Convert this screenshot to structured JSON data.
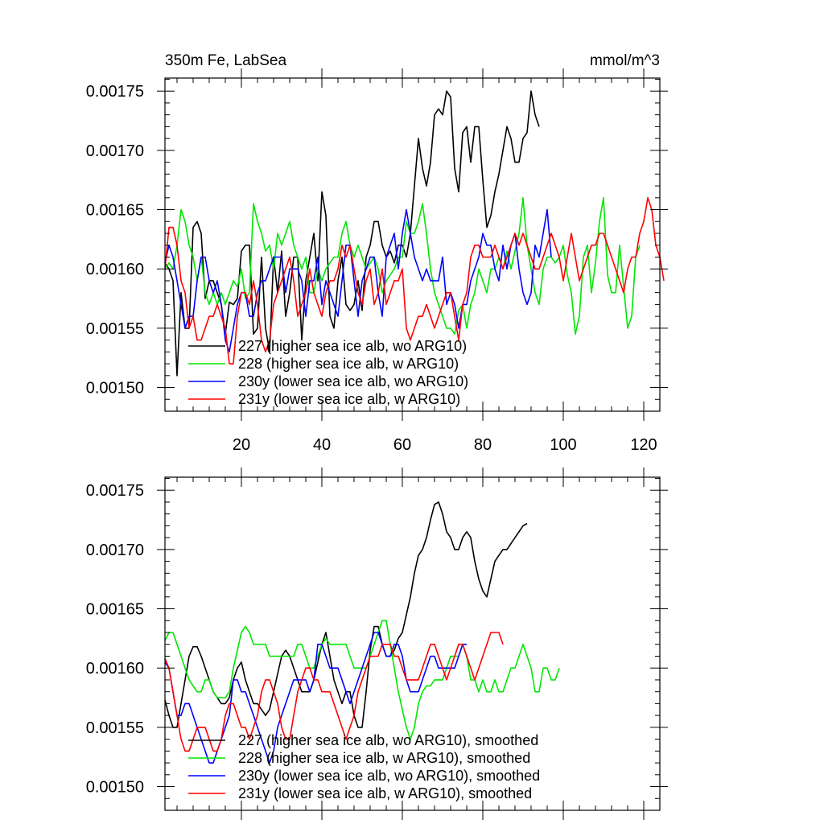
{
  "chart_data": [
    {
      "type": "line",
      "title": "350m Fe, LabSea",
      "units": "mmol/m^3",
      "xlim": [
        1,
        124
      ],
      "ylim": [
        0.00148,
        0.001761
      ],
      "xticks": [
        "20",
        "40",
        "60",
        "80",
        "100",
        "120"
      ],
      "yticks": [
        "0.00150",
        "0.00155",
        "0.00160",
        "0.00165",
        "0.00170",
        "0.00175"
      ],
      "colors": [
        "#000000",
        "#00e600",
        "#0000ff",
        "#ff0000"
      ],
      "series": [
        {
          "name": "227 (higher sea ice alb, wo ARG10)",
          "values": [
            0.001605,
            0.0016,
            0.00159,
            0.00151,
            0.00158,
            0.00155,
            0.00155,
            0.001635,
            0.00164,
            0.00163,
            0.001575,
            0.00159,
            0.00159,
            0.00158,
            0.00157,
            0.001545,
            0.001572,
            0.00157,
            0.001575,
            0.001615,
            0.00162,
            0.00162,
            0.001545,
            0.00155,
            0.00161,
            0.00155,
            0.00153,
            0.00161,
            0.00158,
            0.001615,
            0.00156,
            0.00158,
            0.00161,
            0.00161,
            0.00154,
            0.00159,
            0.00161,
            0.00163,
            0.00159,
            0.001665,
            0.001645,
            0.00156,
            0.00155,
            0.00159,
            0.00161,
            0.00157,
            0.001565,
            0.00157,
            0.00159,
            0.001565,
            0.00161,
            0.00162,
            0.00164,
            0.00164,
            0.00162,
            0.00161,
            0.001615,
            0.001605,
            0.00162,
            0.00162,
            0.00161,
            0.00163,
            0.00167,
            0.00171,
            0.001685,
            0.00167,
            0.00169,
            0.00173,
            0.001735,
            0.00173,
            0.00175,
            0.001745,
            0.001685,
            0.001665,
            0.001715,
            0.00172,
            0.00169,
            0.00172,
            0.00172,
            0.001675,
            0.001635,
            0.001645,
            0.001665,
            0.00168,
            0.0017,
            0.00172,
            0.00171,
            0.00169,
            0.00169,
            0.00171,
            0.001715,
            0.00175,
            0.00173,
            0.00172
          ]
        },
        {
          "name": "228 (higher sea ice alb, w ARG10)",
          "values": [
            0.0016,
            0.001605,
            0.0016,
            0.00162,
            0.00165,
            0.00164,
            0.00162,
            0.00161,
            0.00159,
            0.00161,
            0.00158,
            0.00157,
            0.00158,
            0.00157,
            0.00158,
            0.00157,
            0.00158,
            0.00159,
            0.001585,
            0.0016,
            0.001575,
            0.00158,
            0.001655,
            0.00164,
            0.00163,
            0.001615,
            0.00162,
            0.0016,
            0.00163,
            0.00162,
            0.00163,
            0.00164,
            0.00162,
            0.00161,
            0.0016,
            0.00161,
            0.00158,
            0.00158,
            0.0016,
            0.00159,
            0.0016,
            0.001605,
            0.00161,
            0.00161,
            0.00163,
            0.00164,
            0.00162,
            0.00161,
            0.00162,
            0.00161,
            0.0016,
            0.001605,
            0.00161,
            0.0016,
            0.00158,
            0.00159,
            0.001595,
            0.0016,
            0.00161,
            0.00161,
            0.00164,
            0.00163,
            0.00163,
            0.00164,
            0.001655,
            0.00163,
            0.0016,
            0.00158,
            0.00157,
            0.00156,
            0.00155,
            0.00155,
            0.001545,
            0.001565,
            0.00157,
            0.00155,
            0.00157,
            0.00158,
            0.0016,
            0.00159,
            0.00158,
            0.0016,
            0.0016,
            0.00161,
            0.0016,
            0.001615,
            0.0016,
            0.001615,
            0.00163,
            0.00166,
            0.00162,
            0.0016,
            0.00158,
            0.00157,
            0.0016,
            0.00161,
            0.00161,
            0.001605,
            0.00161,
            0.00162,
            0.001595,
            0.00158,
            0.001545,
            0.00156,
            0.00161,
            0.00162,
            0.00158,
            0.001605,
            0.00164,
            0.00166,
            0.001595,
            0.00158,
            0.00158,
            0.00162,
            0.001585,
            0.00155,
            0.00156,
            0.00161,
            0.00162
          ]
        },
        {
          "name": "230y (lower sea ice alb, wo ARG10)",
          "values": [
            0.001605,
            0.00162,
            0.00161,
            0.00159,
            0.00157,
            0.00155,
            0.00156,
            0.00156,
            0.00159,
            0.00161,
            0.00161,
            0.00159,
            0.00158,
            0.00159,
            0.00157,
            0.00154,
            0.00153,
            0.00155,
            0.00157,
            0.00158,
            0.00158,
            0.00156,
            0.00156,
            0.00158,
            0.00159,
            0.00159,
            0.0016,
            0.00161,
            0.00161,
            0.00161,
            0.00158,
            0.0016,
            0.0016,
            0.0016,
            0.00159,
            0.00156,
            0.00159,
            0.00159,
            0.00161,
            0.00157,
            0.00159,
            0.00158,
            0.00157,
            0.00156,
            0.00159,
            0.00162,
            0.00162,
            0.00159,
            0.00156,
            0.00159,
            0.0016,
            0.00161,
            0.00161,
            0.00158,
            0.00156,
            0.00161,
            0.00162,
            0.00163,
            0.0016,
            0.00163,
            0.00165,
            0.00163,
            0.00161,
            0.0016,
            0.00159,
            0.0016,
            0.00159,
            0.00159,
            0.00159,
            0.00161,
            0.00157,
            0.00158,
            0.00157,
            0.00155,
            0.00157,
            0.00157,
            0.00159,
            0.0016,
            0.00161,
            0.00163,
            0.00162,
            0.00162,
            0.0016,
            0.00159,
            0.00162,
            0.0016,
            0.00162,
            0.00163,
            0.0016,
            0.00158,
            0.00157,
            0.00158,
            0.00162,
            0.00161,
            0.00163,
            0.00165,
            0.00161
          ]
        },
        {
          "name": "231y (lower sea ice alb, w ARG10)",
          "values": [
            0.0016,
            0.001635,
            0.001635,
            0.00162,
            0.00159,
            0.00158,
            0.00155,
            0.00156,
            0.00154,
            0.00154,
            0.00155,
            0.00156,
            0.00156,
            0.00157,
            0.00156,
            0.00155,
            0.00152,
            0.00152,
            0.00156,
            0.00158,
            0.00158,
            0.00157,
            0.00159,
            0.00157,
            0.00154,
            0.00153,
            0.00154,
            0.00157,
            0.00158,
            0.00159,
            0.0016,
            0.00161,
            0.00159,
            0.00156,
            0.00157,
            0.00158,
            0.0016,
            0.00158,
            0.00157,
            0.00156,
            0.00158,
            0.00159,
            0.00159,
            0.0016,
            0.00162,
            0.00161,
            0.00162,
            0.0016,
            0.00158,
            0.00157,
            0.00159,
            0.0016,
            0.00157,
            0.00158,
            0.0016,
            0.00157,
            0.00158,
            0.00159,
            0.00159,
            0.0016,
            0.00155,
            0.00154,
            0.00155,
            0.00156,
            0.00156,
            0.00157,
            0.00156,
            0.00155,
            0.00156,
            0.00157,
            0.00158,
            0.00158,
            0.00156,
            0.00154,
            0.00157,
            0.00158,
            0.00161,
            0.00162,
            0.00162,
            0.00161,
            0.00161,
            0.00161,
            0.00162,
            0.00161,
            0.0016,
            0.00161,
            0.00162,
            0.00163,
            0.00162,
            0.00163,
            0.00162,
            0.00161,
            0.0016,
            0.0016,
            0.00161,
            0.00162,
            0.00163,
            0.00162,
            0.00161,
            0.00159,
            0.00161,
            0.00163,
            0.00161,
            0.00159,
            0.0016,
            0.00161,
            0.00162,
            0.00162,
            0.00163,
            0.00163,
            0.00162,
            0.00161,
            0.0016,
            0.00159,
            0.00158,
            0.0016,
            0.00161,
            0.00161,
            0.00163,
            0.00164,
            0.00166,
            0.00165,
            0.00162,
            0.00161,
            0.00159
          ]
        }
      ]
    },
    {
      "type": "line",
      "title": "",
      "xlim": [
        1,
        124
      ],
      "ylim": [
        0.00148,
        0.001761
      ],
      "yticks": [
        "0.00150",
        "0.00155",
        "0.00160",
        "0.00165",
        "0.00170",
        "0.00175"
      ],
      "colors": [
        "#000000",
        "#00e600",
        "#0000ff",
        "#ff0000"
      ],
      "series": [
        {
          "name": "227 (higher sea ice alb, wo ARG10), smoothed",
          "values": [
            0.001573,
            0.00156,
            0.00155,
            0.00155,
            0.00157,
            0.00159,
            0.00161,
            0.001618,
            0.001618,
            0.00161,
            0.0016,
            0.00159,
            0.00158,
            0.001575,
            0.00157,
            0.00157,
            0.001575,
            0.00159,
            0.0016,
            0.001605,
            0.00159,
            0.00158,
            0.00157,
            0.00157,
            0.001565,
            0.00156,
            0.001565,
            0.00158,
            0.001595,
            0.00161,
            0.001615,
            0.00161,
            0.0016,
            0.00159,
            0.00158,
            0.00158,
            0.00158,
            0.00159,
            0.001605,
            0.00162,
            0.00163,
            0.00161,
            0.00159,
            0.00158,
            0.00157,
            0.00158,
            0.00158,
            0.00156,
            0.00155,
            0.00155,
            0.00158,
            0.001615,
            0.001635,
            0.001635,
            0.00162,
            0.00161,
            0.00161,
            0.001615,
            0.001625,
            0.00163,
            0.001645,
            0.00166,
            0.00168,
            0.001695,
            0.0017,
            0.00171,
            0.001725,
            0.001738,
            0.00174,
            0.00173,
            0.001715,
            0.00171,
            0.0017,
            0.0017,
            0.00171,
            0.001715,
            0.00171,
            0.00169,
            0.001675,
            0.001665,
            0.00166,
            0.001675,
            0.00169,
            0.001695,
            0.0017,
            0.0017,
            0.001705,
            0.00171,
            0.001715,
            0.00172,
            0.001722
          ]
        },
        {
          "name": "228 (higher sea ice alb, w ARG10), smoothed",
          "values": [
            0.001623,
            0.00163,
            0.00163,
            0.00162,
            0.00161,
            0.0016,
            0.00159,
            0.001585,
            0.00158,
            0.00158,
            0.00159,
            0.00159,
            0.00158,
            0.001575,
            0.001575,
            0.001575,
            0.00158,
            0.0016,
            0.001615,
            0.00163,
            0.001635,
            0.00163,
            0.00162,
            0.00162,
            0.00162,
            0.00162,
            0.00161,
            0.00161,
            0.00161,
            0.00161,
            0.00161,
            0.00161,
            0.00161,
            0.00162,
            0.00162,
            0.00161,
            0.0016,
            0.0016,
            0.00161,
            0.00162,
            0.001625,
            0.00162,
            0.00162,
            0.00162,
            0.00162,
            0.00162,
            0.00161,
            0.0016,
            0.0016,
            0.0016,
            0.0016,
            0.00161,
            0.00162,
            0.00163,
            0.00164,
            0.00164,
            0.00162,
            0.0016,
            0.00158,
            0.001565,
            0.00155,
            0.00154,
            0.00155,
            0.00157,
            0.00158,
            0.001585,
            0.001585,
            0.00159,
            0.00159,
            0.00159,
            0.0016,
            0.00161,
            0.00161,
            0.00161,
            0.00162,
            0.00161,
            0.00159,
            0.00159,
            0.00158,
            0.00159,
            0.00158,
            0.00158,
            0.00159,
            0.00158,
            0.00158,
            0.00159,
            0.0016,
            0.0016,
            0.00161,
            0.00162,
            0.00161,
            0.0016,
            0.00158,
            0.00158,
            0.0016,
            0.0016,
            0.00159,
            0.00159,
            0.0016
          ]
        },
        {
          "name": "230y (lower sea ice alb, wo ARG10), smoothed",
          "values": [
            0.001605,
            0.0016,
            0.00158,
            0.00156,
            0.00156,
            0.00157,
            0.00157,
            0.00156,
            0.00155,
            0.00154,
            0.00153,
            0.00152,
            0.00152,
            0.00153,
            0.00154,
            0.00155,
            0.00156,
            0.00159,
            0.00159,
            0.00158,
            0.00158,
            0.00157,
            0.00156,
            0.00155,
            0.00154,
            0.00153,
            0.00152,
            0.00153,
            0.00155,
            0.00156,
            0.00157,
            0.00158,
            0.00159,
            0.00159,
            0.00159,
            0.00159,
            0.00158,
            0.00159,
            0.00162,
            0.00162,
            0.00161,
            0.0016,
            0.0016,
            0.0016,
            0.00159,
            0.00158,
            0.00157,
            0.00158,
            0.00159,
            0.0016,
            0.00161,
            0.00162,
            0.00163,
            0.00163,
            0.00162,
            0.00161,
            0.00161,
            0.00162,
            0.00162,
            0.00161,
            0.00159,
            0.00158,
            0.00158,
            0.00158,
            0.00159,
            0.0016,
            0.00161,
            0.00161,
            0.0016,
            0.0016,
            0.0016,
            0.0016,
            0.0016,
            0.00161,
            0.00162,
            0.00162
          ]
        },
        {
          "name": "231y (lower sea ice alb, w ARG10), smoothed",
          "values": [
            0.001608,
            0.0016,
            0.00158,
            0.00156,
            0.00154,
            0.00153,
            0.00153,
            0.00154,
            0.00155,
            0.00155,
            0.00155,
            0.00154,
            0.00153,
            0.00153,
            0.00154,
            0.00156,
            0.00157,
            0.00157,
            0.00156,
            0.00155,
            0.00155,
            0.00154,
            0.00155,
            0.00156,
            0.00158,
            0.00159,
            0.00159,
            0.00158,
            0.00157,
            0.00155,
            0.00154,
            0.00154,
            0.00156,
            0.00158,
            0.00159,
            0.0016,
            0.0016,
            0.00159,
            0.00159,
            0.00158,
            0.00158,
            0.00158,
            0.00157,
            0.00156,
            0.00155,
            0.00154,
            0.00155,
            0.00156,
            0.00158,
            0.00159,
            0.0016,
            0.00161,
            0.00161,
            0.00161,
            0.00162,
            0.00162,
            0.00162,
            0.00161,
            0.00161,
            0.0016,
            0.00159,
            0.00159,
            0.00159,
            0.00159,
            0.0016,
            0.00161,
            0.00162,
            0.00162,
            0.00161,
            0.0016,
            0.00159,
            0.0016,
            0.00161,
            0.00162,
            0.00162,
            0.00161,
            0.0016,
            0.00159,
            0.0016,
            0.00161,
            0.00162,
            0.00163,
            0.00163,
            0.00163,
            0.00162
          ]
        }
      ]
    }
  ]
}
